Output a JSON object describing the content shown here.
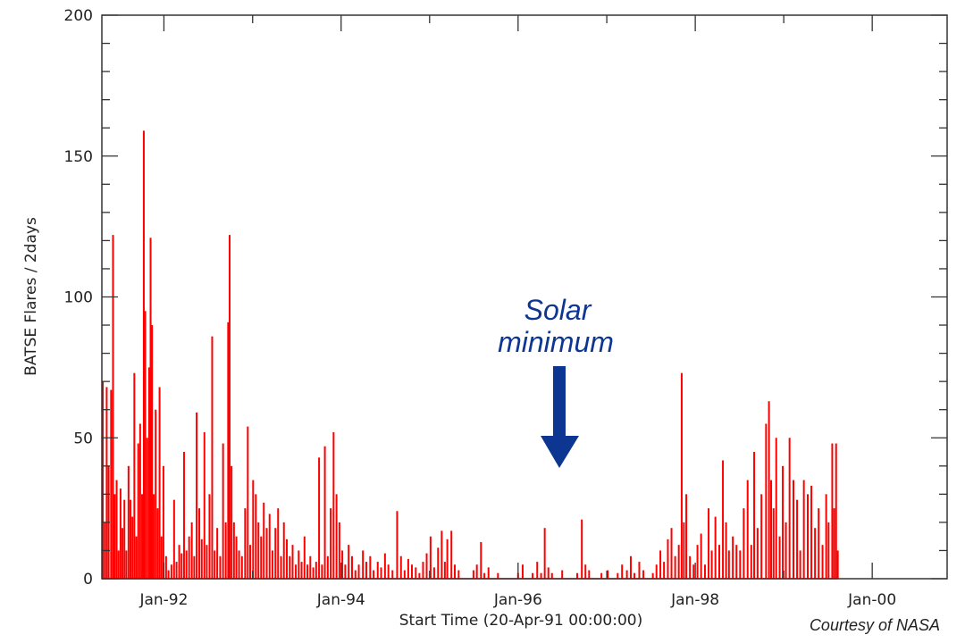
{
  "chart_data": {
    "type": "bar",
    "title": "",
    "xlabel": "Start Time (20-Apr-91 00:00:00)",
    "ylabel": "BATSE Flares / 2days",
    "credit": "Courtesy of NASA",
    "xlim": [
      "1991-04-20",
      "2000-11-05"
    ],
    "ylim": [
      0,
      200
    ],
    "x_ticks": [
      {
        "date": "1992-01-01",
        "label": "Jan-92"
      },
      {
        "date": "1994-01-01",
        "label": "Jan-94"
      },
      {
        "date": "1996-01-01",
        "label": "Jan-96"
      },
      {
        "date": "1998-01-01",
        "label": "Jan-98"
      },
      {
        "date": "2000-01-01",
        "label": "Jan-00"
      }
    ],
    "x_minor_ticks": [
      "1993-01-01",
      "1995-01-01",
      "1997-01-01",
      "1999-01-01"
    ],
    "y_ticks": [
      {
        "value": 0,
        "label": "0"
      },
      {
        "value": 50,
        "label": "50"
      },
      {
        "value": 100,
        "label": "100"
      },
      {
        "value": 150,
        "label": "150"
      },
      {
        "value": 200,
        "label": "200"
      }
    ],
    "y_minor_step": 10,
    "grid": false,
    "legend": "none",
    "series_color": "#ff0000",
    "annotation": {
      "line1": "Solar",
      "line2": "minimum",
      "date": "1996-06-01",
      "color": "#0d3592"
    },
    "points": [
      [
        "1991-04-24",
        70
      ],
      [
        "1991-05-02",
        20
      ],
      [
        "1991-05-10",
        68
      ],
      [
        "1991-05-18",
        40
      ],
      [
        "1991-05-28",
        67
      ],
      [
        "1991-06-05",
        122
      ],
      [
        "1991-06-12",
        30
      ],
      [
        "1991-06-20",
        35
      ],
      [
        "1991-06-28",
        10
      ],
      [
        "1991-07-06",
        32
      ],
      [
        "1991-07-14",
        18
      ],
      [
        "1991-07-22",
        28
      ],
      [
        "1991-07-30",
        10
      ],
      [
        "1991-08-08",
        40
      ],
      [
        "1991-08-16",
        28
      ],
      [
        "1991-08-24",
        22
      ],
      [
        "1991-09-01",
        73
      ],
      [
        "1991-09-09",
        15
      ],
      [
        "1991-09-17",
        48
      ],
      [
        "1991-09-25",
        55
      ],
      [
        "1991-10-03",
        30
      ],
      [
        "1991-10-10",
        159
      ],
      [
        "1991-10-16",
        95
      ],
      [
        "1991-10-24",
        50
      ],
      [
        "1991-11-01",
        75
      ],
      [
        "1991-11-07",
        121
      ],
      [
        "1991-11-13",
        90
      ],
      [
        "1991-11-20",
        30
      ],
      [
        "1991-11-28",
        60
      ],
      [
        "1991-12-06",
        25
      ],
      [
        "1991-12-14",
        68
      ],
      [
        "1991-12-22",
        15
      ],
      [
        "1991-12-30",
        40
      ],
      [
        "1992-01-10",
        8
      ],
      [
        "1992-01-20",
        3
      ],
      [
        "1992-02-01",
        5
      ],
      [
        "1992-02-12",
        28
      ],
      [
        "1992-02-22",
        6
      ],
      [
        "1992-03-04",
        12
      ],
      [
        "1992-03-14",
        9
      ],
      [
        "1992-03-24",
        45
      ],
      [
        "1992-04-03",
        10
      ],
      [
        "1992-04-14",
        15
      ],
      [
        "1992-04-25",
        20
      ],
      [
        "1992-05-05",
        8
      ],
      [
        "1992-05-15",
        59
      ],
      [
        "1992-05-26",
        25
      ],
      [
        "1992-06-05",
        14
      ],
      [
        "1992-06-16",
        52
      ],
      [
        "1992-06-26",
        12
      ],
      [
        "1992-07-07",
        30
      ],
      [
        "1992-07-18",
        86
      ],
      [
        "1992-07-28",
        10
      ],
      [
        "1992-08-08",
        18
      ],
      [
        "1992-08-20",
        8
      ],
      [
        "1992-09-01",
        48
      ],
      [
        "1992-09-12",
        20
      ],
      [
        "1992-09-22",
        91
      ],
      [
        "1992-09-28",
        122
      ],
      [
        "1992-10-06",
        40
      ],
      [
        "1992-10-16",
        20
      ],
      [
        "1992-10-26",
        15
      ],
      [
        "1992-11-06",
        10
      ],
      [
        "1992-11-18",
        8
      ],
      [
        "1992-12-01",
        25
      ],
      [
        "1992-12-12",
        54
      ],
      [
        "1992-12-22",
        12
      ],
      [
        "1993-01-03",
        35
      ],
      [
        "1993-01-14",
        30
      ],
      [
        "1993-01-25",
        20
      ],
      [
        "1993-02-05",
        15
      ],
      [
        "1993-02-16",
        27
      ],
      [
        "1993-02-28",
        18
      ],
      [
        "1993-03-12",
        23
      ],
      [
        "1993-03-24",
        10
      ],
      [
        "1993-04-05",
        18
      ],
      [
        "1993-04-16",
        25
      ],
      [
        "1993-04-28",
        8
      ],
      [
        "1993-05-10",
        20
      ],
      [
        "1993-05-22",
        14
      ],
      [
        "1993-06-03",
        8
      ],
      [
        "1993-06-15",
        12
      ],
      [
        "1993-06-28",
        5
      ],
      [
        "1993-07-10",
        10
      ],
      [
        "1993-07-22",
        6
      ],
      [
        "1993-08-03",
        15
      ],
      [
        "1993-08-15",
        5
      ],
      [
        "1993-08-27",
        8
      ],
      [
        "1993-09-08",
        4
      ],
      [
        "1993-09-20",
        6
      ],
      [
        "1993-10-02",
        43
      ],
      [
        "1993-10-14",
        5
      ],
      [
        "1993-10-26",
        47
      ],
      [
        "1993-11-07",
        8
      ],
      [
        "1993-11-19",
        25
      ],
      [
        "1993-12-01",
        52
      ],
      [
        "1993-12-13",
        30
      ],
      [
        "1993-12-25",
        20
      ],
      [
        "1994-01-06",
        10
      ],
      [
        "1994-01-18",
        5
      ],
      [
        "1994-02-01",
        12
      ],
      [
        "1994-02-15",
        8
      ],
      [
        "1994-03-01",
        3
      ],
      [
        "1994-03-15",
        5
      ],
      [
        "1994-04-01",
        10
      ],
      [
        "1994-04-15",
        6
      ],
      [
        "1994-05-01",
        8
      ],
      [
        "1994-05-15",
        3
      ],
      [
        "1994-06-01",
        6
      ],
      [
        "1994-06-15",
        4
      ],
      [
        "1994-07-01",
        9
      ],
      [
        "1994-07-15",
        5
      ],
      [
        "1994-08-01",
        3
      ],
      [
        "1994-08-20",
        24
      ],
      [
        "1994-09-05",
        8
      ],
      [
        "1994-09-20",
        3
      ],
      [
        "1994-10-05",
        7
      ],
      [
        "1994-10-20",
        5
      ],
      [
        "1994-11-05",
        4
      ],
      [
        "1994-11-20",
        2
      ],
      [
        "1994-12-05",
        6
      ],
      [
        "1994-12-20",
        9
      ],
      [
        "1995-01-05",
        15
      ],
      [
        "1995-01-20",
        4
      ],
      [
        "1995-02-05",
        11
      ],
      [
        "1995-02-20",
        17
      ],
      [
        "1995-03-05",
        6
      ],
      [
        "1995-03-15",
        14
      ],
      [
        "1995-04-01",
        17
      ],
      [
        "1995-04-15",
        5
      ],
      [
        "1995-05-01",
        3
      ],
      [
        "1995-05-20",
        0
      ],
      [
        "1995-06-10",
        0
      ],
      [
        "1995-07-01",
        3
      ],
      [
        "1995-07-15",
        5
      ],
      [
        "1995-08-01",
        13
      ],
      [
        "1995-08-15",
        2
      ],
      [
        "1995-09-01",
        4
      ],
      [
        "1995-09-20",
        0
      ],
      [
        "1995-10-10",
        2
      ],
      [
        "1995-11-01",
        0
      ],
      [
        "1995-12-01",
        0
      ],
      [
        "1996-01-01",
        2
      ],
      [
        "1996-01-20",
        5
      ],
      [
        "1996-02-10",
        0
      ],
      [
        "1996-03-01",
        2
      ],
      [
        "1996-03-20",
        6
      ],
      [
        "1996-04-05",
        2
      ],
      [
        "1996-04-20",
        18
      ],
      [
        "1996-05-05",
        4
      ],
      [
        "1996-05-20",
        2
      ],
      [
        "1996-06-10",
        0
      ],
      [
        "1996-07-01",
        3
      ],
      [
        "1996-08-01",
        0
      ],
      [
        "1996-09-01",
        2
      ],
      [
        "1996-09-20",
        21
      ],
      [
        "1996-10-05",
        5
      ],
      [
        "1996-10-20",
        3
      ],
      [
        "1996-11-15",
        0
      ],
      [
        "1996-12-10",
        2
      ],
      [
        "1997-01-05",
        3
      ],
      [
        "1997-01-25",
        0
      ],
      [
        "1997-02-15",
        2
      ],
      [
        "1997-03-05",
        5
      ],
      [
        "1997-03-25",
        3
      ],
      [
        "1997-04-10",
        8
      ],
      [
        "1997-04-25",
        2
      ],
      [
        "1997-05-15",
        6
      ],
      [
        "1997-06-01",
        3
      ],
      [
        "1997-06-20",
        0
      ],
      [
        "1997-07-10",
        2
      ],
      [
        "1997-07-25",
        5
      ],
      [
        "1997-08-10",
        10
      ],
      [
        "1997-08-25",
        6
      ],
      [
        "1997-09-10",
        14
      ],
      [
        "1997-09-25",
        18
      ],
      [
        "1997-10-10",
        8
      ],
      [
        "1997-10-25",
        12
      ],
      [
        "1997-11-06",
        73
      ],
      [
        "1997-11-15",
        20
      ],
      [
        "1997-11-25",
        30
      ],
      [
        "1997-12-10",
        8
      ],
      [
        "1997-12-25",
        5
      ],
      [
        "1998-01-10",
        12
      ],
      [
        "1998-01-25",
        16
      ],
      [
        "1998-02-10",
        5
      ],
      [
        "1998-02-25",
        25
      ],
      [
        "1998-03-10",
        10
      ],
      [
        "1998-03-25",
        22
      ],
      [
        "1998-04-10",
        12
      ],
      [
        "1998-04-25",
        42
      ],
      [
        "1998-05-08",
        20
      ],
      [
        "1998-05-20",
        10
      ],
      [
        "1998-06-05",
        15
      ],
      [
        "1998-06-20",
        12
      ],
      [
        "1998-07-05",
        10
      ],
      [
        "1998-07-20",
        25
      ],
      [
        "1998-08-05",
        35
      ],
      [
        "1998-08-20",
        12
      ],
      [
        "1998-09-01",
        45
      ],
      [
        "1998-09-15",
        18
      ],
      [
        "1998-10-01",
        30
      ],
      [
        "1998-10-20",
        55
      ],
      [
        "1998-11-01",
        63
      ],
      [
        "1998-11-10",
        35
      ],
      [
        "1998-11-20",
        25
      ],
      [
        "1998-12-01",
        50
      ],
      [
        "1998-12-15",
        15
      ],
      [
        "1998-12-28",
        40
      ],
      [
        "1999-01-10",
        20
      ],
      [
        "1999-01-25",
        50
      ],
      [
        "1999-02-10",
        35
      ],
      [
        "1999-02-25",
        28
      ],
      [
        "1999-03-10",
        10
      ],
      [
        "1999-03-25",
        35
      ],
      [
        "1999-04-10",
        30
      ],
      [
        "1999-04-25",
        33
      ],
      [
        "1999-05-10",
        18
      ],
      [
        "1999-05-25",
        25
      ],
      [
        "1999-06-10",
        12
      ],
      [
        "1999-06-25",
        30
      ],
      [
        "1999-07-05",
        20
      ],
      [
        "1999-07-20",
        48
      ],
      [
        "1999-07-28",
        25
      ],
      [
        "1999-08-05",
        48
      ],
      [
        "1999-08-12",
        10
      ]
    ]
  }
}
